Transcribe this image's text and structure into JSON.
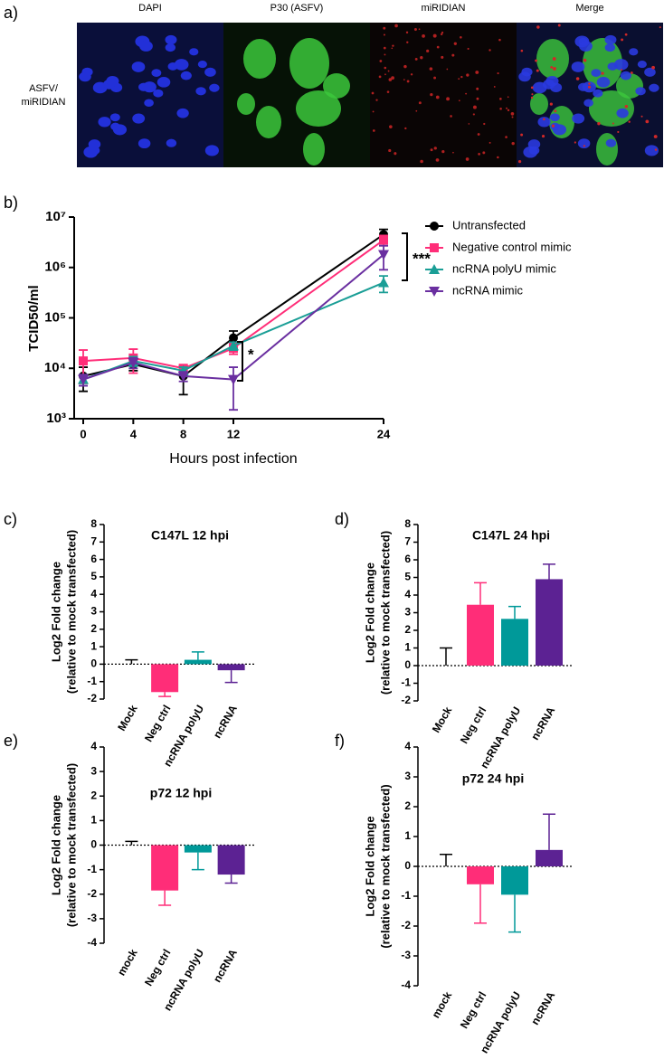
{
  "panel_a": {
    "label": "a)",
    "headers": [
      "DAPI",
      "P30 (ASFV)",
      "miRIDIAN",
      "Merge"
    ],
    "row_label": [
      "ASFV/",
      "miRIDIAN"
    ]
  },
  "chart_data": [
    {
      "type": "line",
      "panel_label": "b)",
      "x_label": "Hours post infection",
      "y_label": "TCID50/ml",
      "x": [
        0,
        4,
        8,
        12,
        24
      ],
      "xlim": [
        0,
        24
      ],
      "xticks": [
        0,
        4,
        8,
        12,
        24
      ],
      "ylim": [
        1000,
        10000000
      ],
      "log_y": true,
      "yticks": [
        {
          "value": 1000,
          "label": "10³"
        },
        {
          "value": 10000,
          "label": "10⁴"
        },
        {
          "value": 100000,
          "label": "10⁵"
        },
        {
          "value": 1000000,
          "label": "10⁶"
        },
        {
          "value": 10000000,
          "label": "10⁷"
        }
      ],
      "legend": "right",
      "series": [
        {
          "name": "Untransfected",
          "color": "#000000",
          "marker": "circle",
          "values": [
            7000,
            12000,
            7000,
            40000,
            4500000
          ],
          "errors": [
            3500,
            3000,
            4000,
            15000,
            1200000
          ]
        },
        {
          "name": "Negative control mimic",
          "color": "#ff2d78",
          "marker": "square",
          "values": [
            14000,
            16000,
            10000,
            25000,
            3500000
          ],
          "errors": [
            9000,
            8000,
            1500,
            6000,
            800000
          ]
        },
        {
          "name": "ncRNA polyU mimic",
          "color": "#1a9e96",
          "marker": "triangle",
          "values": [
            6000,
            14000,
            9000,
            28000,
            500000
          ],
          "errors": [
            1500,
            3000,
            1500,
            5000,
            180000
          ]
        },
        {
          "name": "ncRNA mimic",
          "color": "#6a2fa0",
          "marker": "triangle-down",
          "values": [
            6000,
            13000,
            7000,
            6000,
            1800000
          ],
          "errors": [
            1500,
            3000,
            1500,
            4500,
            900000
          ]
        }
      ],
      "annotations": [
        "***",
        "*"
      ]
    },
    {
      "type": "bar",
      "panel_label": "c)",
      "title": "C147L 12 hpi",
      "y_label": [
        "Log2 Fold change",
        "(relative to mock transfected)"
      ],
      "categories": [
        "Mock",
        "Neg ctrl",
        "ncRNA polyU",
        "ncRNA"
      ],
      "values": [
        0,
        -1.6,
        0.25,
        -0.35
      ],
      "errors": [
        0.25,
        0.25,
        0.45,
        0.7
      ],
      "colors": [
        "#ffffff",
        "#ff2d78",
        "#009999",
        "#5c2293"
      ],
      "error_colors": [
        "#000000",
        "#ff2d78",
        "#009999",
        "#5c2293"
      ],
      "ylim": [
        -2,
        8
      ],
      "yticks": [
        -2,
        -1,
        0,
        1,
        2,
        3,
        4,
        5,
        6,
        7,
        8
      ]
    },
    {
      "type": "bar",
      "panel_label": "d)",
      "title": "C147L 24 hpi",
      "y_label": [
        "Log2 Fold change",
        "(relative to mock transfected)"
      ],
      "categories": [
        "Mock",
        "Neg ctrl",
        "ncRNA polyU",
        "ncRNA"
      ],
      "values": [
        0,
        3.45,
        2.65,
        4.9
      ],
      "errors": [
        1.0,
        1.25,
        0.7,
        0.85
      ],
      "colors": [
        "#ffffff",
        "#ff2d78",
        "#009999",
        "#5c2293"
      ],
      "error_colors": [
        "#000000",
        "#ff2d78",
        "#009999",
        "#5c2293"
      ],
      "ylim": [
        -2,
        8
      ],
      "yticks": [
        -2,
        -1,
        0,
        1,
        2,
        3,
        4,
        5,
        6,
        7,
        8
      ]
    },
    {
      "type": "bar",
      "panel_label": "e)",
      "title": "p72 12 hpi",
      "y_label": [
        "Log2 Fold change",
        "(relative to mock transfected)"
      ],
      "categories": [
        "mock",
        "Neg ctrl",
        "ncRNA polyU",
        "ncRNA"
      ],
      "values": [
        0,
        -1.85,
        -0.3,
        -1.2
      ],
      "errors": [
        0.15,
        0.6,
        0.7,
        0.35
      ],
      "colors": [
        "#ffffff",
        "#ff2d78",
        "#009999",
        "#5c2293"
      ],
      "error_colors": [
        "#000000",
        "#ff2d78",
        "#009999",
        "#5c2293"
      ],
      "ylim": [
        -4,
        4
      ],
      "yticks": [
        -4,
        -3,
        -2,
        -1,
        0,
        1,
        2,
        3,
        4
      ]
    },
    {
      "type": "bar",
      "panel_label": "f)",
      "title": "p72 24 hpi",
      "y_label": [
        "Log2 Fold change",
        "(relative to mock transfected)"
      ],
      "categories": [
        "mock",
        "Neg ctrl",
        "ncRNA polyU",
        "ncRNA"
      ],
      "values": [
        0,
        -0.6,
        -0.95,
        0.55
      ],
      "errors": [
        0.4,
        1.3,
        1.25,
        1.2
      ],
      "colors": [
        "#ffffff",
        "#ff2d78",
        "#009999",
        "#5c2293"
      ],
      "error_colors": [
        "#000000",
        "#ff2d78",
        "#009999",
        "#5c2293"
      ],
      "ylim": [
        -4,
        4
      ],
      "yticks": [
        -4,
        -3,
        -2,
        -1,
        0,
        1,
        2,
        3,
        4
      ]
    }
  ]
}
